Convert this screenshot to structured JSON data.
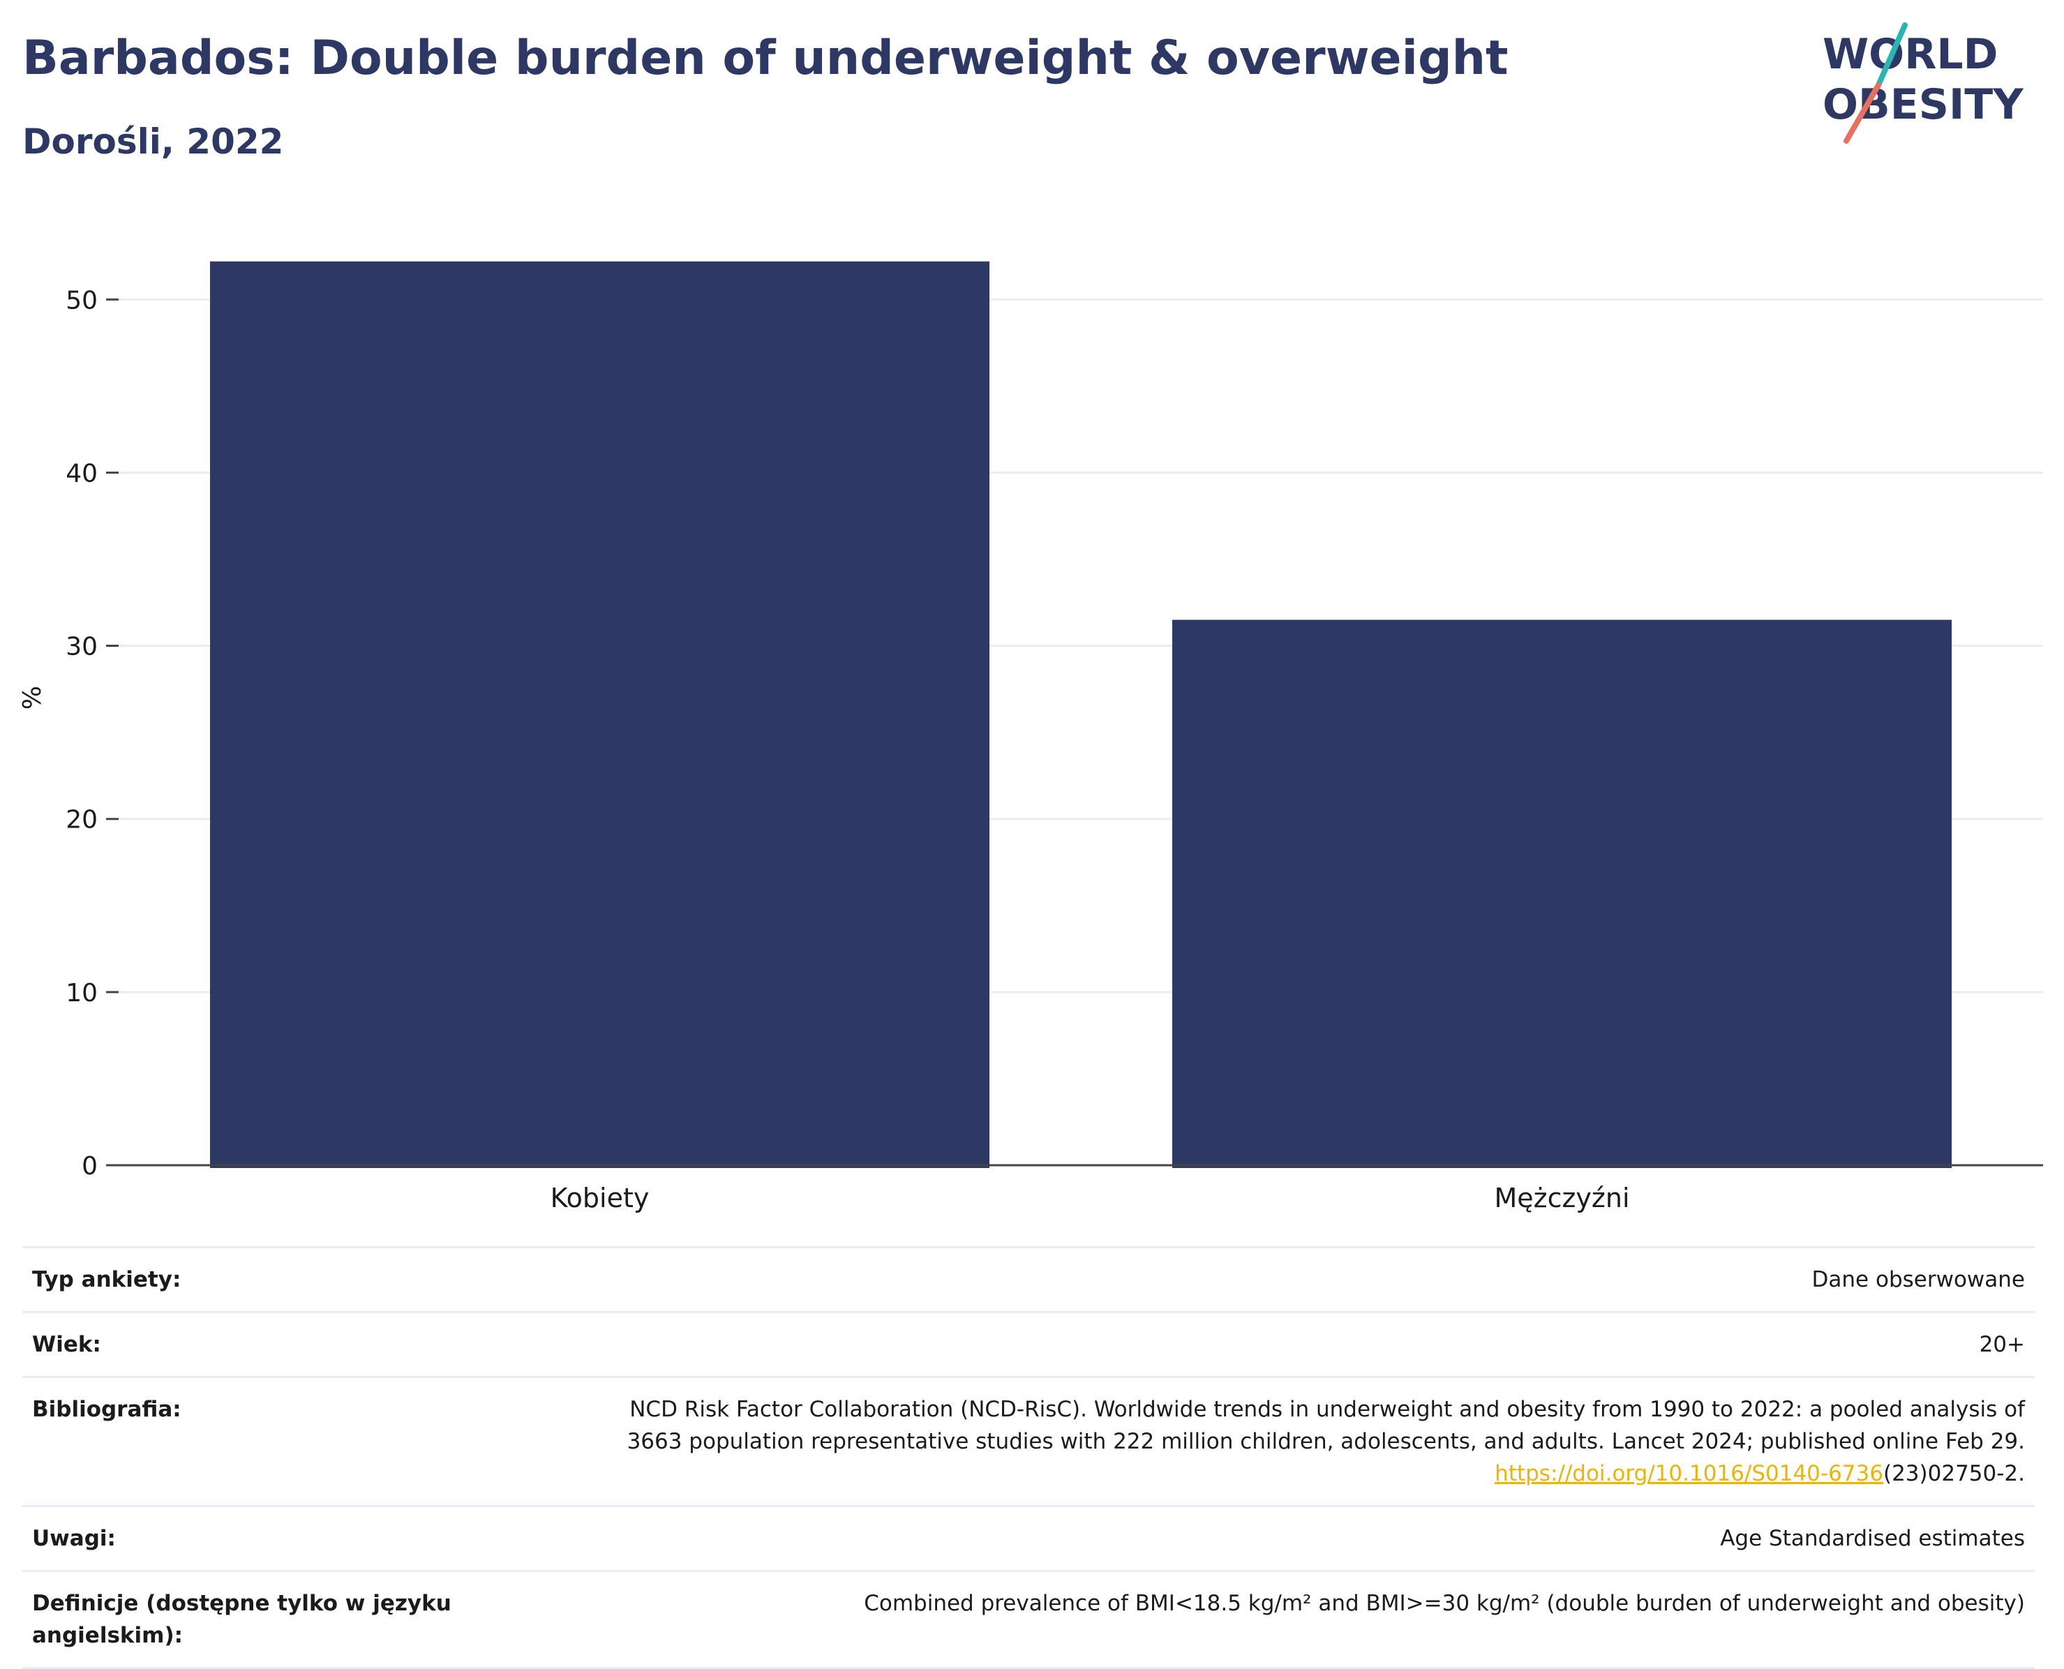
{
  "header": {
    "title": "Barbados: Double burden of underweight & overweight",
    "subtitle": "Dorośli, 2022"
  },
  "logo": {
    "line1": "WORLD",
    "line2": "OBESITY",
    "colors": {
      "text": "#2d3864",
      "slash_teal": "#2bb5b0",
      "slash_coral": "#e8705f"
    }
  },
  "chart_data": {
    "type": "bar",
    "title": "",
    "xlabel": "",
    "ylabel": "%",
    "categories": [
      "Kobiety",
      "Mężczyźni"
    ],
    "values": [
      52.2,
      31.5
    ],
    "ylim": [
      0,
      54
    ],
    "yticks": [
      0,
      10,
      20,
      30,
      40,
      50
    ],
    "grid": true,
    "legend": "none",
    "bar_color": "#2d3864"
  },
  "meta": {
    "survey_type": {
      "label": "Typ ankiety:",
      "value": "Dane obserwowane"
    },
    "age": {
      "label": "Wiek:",
      "value": "20+"
    },
    "bibliography": {
      "label": "Bibliografia:",
      "line1": "NCD Risk Factor Collaboration (NCD-RisC). Worldwide trends in underweight and obesity from 1990 to 2022: a pooled analysis of",
      "line2": "3663 population representative studies with 222 million children, adolescents, and adults. Lancet 2024; published online Feb 29.",
      "link_text": "https://doi.org/10.1016/S0140-6736",
      "link_suffix": "(23)02750-2."
    },
    "notes": {
      "label": "Uwagi:",
      "value": "Age Standardised estimates"
    },
    "definitions": {
      "label": "Definicje (dostępne tylko w języku angielskim):",
      "value": "Combined prevalence of BMI<18.5 kg/m² and BMI>=30 kg/m² (double burden of underweight and obesity)"
    }
  }
}
